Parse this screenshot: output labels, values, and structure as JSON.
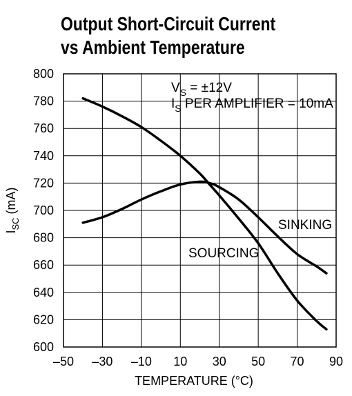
{
  "chart_data": {
    "type": "line",
    "title_lines": [
      "Output Short-Circuit Current",
      "vs Ambient Temperature"
    ],
    "xlabel": "TEMPERATURE (°C)",
    "ylabel": {
      "main": "I",
      "sub": "SC",
      "rest": " (mA)"
    },
    "xlim": [
      -50,
      90
    ],
    "ylim": [
      600,
      800
    ],
    "xticks": [
      -50,
      -30,
      -10,
      10,
      30,
      50,
      70,
      90
    ],
    "yticks": [
      600,
      620,
      640,
      660,
      680,
      700,
      720,
      740,
      760,
      780,
      800
    ],
    "xtick_labels": [
      "–50",
      "–30",
      "–10",
      "10",
      "30",
      "50",
      "70",
      "90"
    ],
    "grid": true,
    "conditions": [
      {
        "main": "V",
        "sub": "S",
        "rest": " = ±12V"
      },
      {
        "main": "I",
        "sub": "S",
        "rest": " PER AMPLIFIER = 10mA"
      }
    ],
    "series": [
      {
        "name": "SINKING",
        "x": [
          -40,
          -30,
          -20,
          -10,
          0,
          10,
          20,
          25,
          30,
          40,
          50,
          60,
          70,
          80,
          85
        ],
        "y": [
          691,
          695,
          701,
          708,
          714,
          719,
          721,
          720,
          717,
          708,
          695,
          681,
          668,
          659,
          654
        ]
      },
      {
        "name": "SOURCING",
        "x": [
          -40,
          -30,
          -20,
          -10,
          0,
          10,
          20,
          25,
          30,
          40,
          50,
          60,
          70,
          80,
          85
        ],
        "y": [
          782,
          776,
          769,
          761,
          751,
          740,
          727,
          719,
          711,
          694,
          676,
          654,
          634,
          619,
          613
        ]
      }
    ]
  }
}
